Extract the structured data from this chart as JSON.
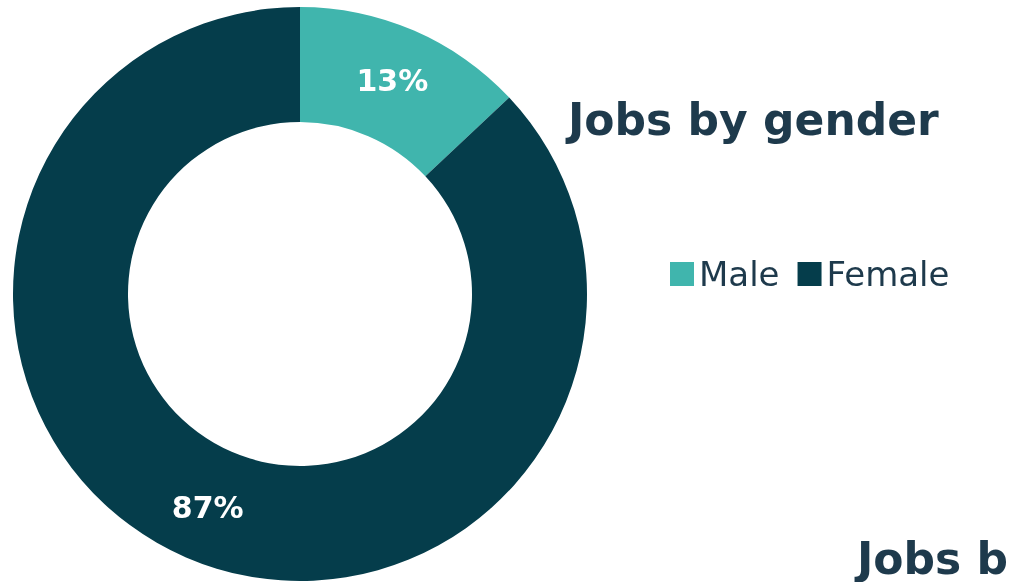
{
  "chart_data": {
    "type": "donut",
    "title": "Jobs by gender",
    "categories": [
      "Male",
      "Female"
    ],
    "values": [
      13,
      87
    ],
    "colors": [
      "#40b5ad",
      "#053d4b"
    ],
    "value_labels": [
      "13%",
      "87%"
    ],
    "legend": "right",
    "annotations": [
      "Jobs b"
    ]
  }
}
